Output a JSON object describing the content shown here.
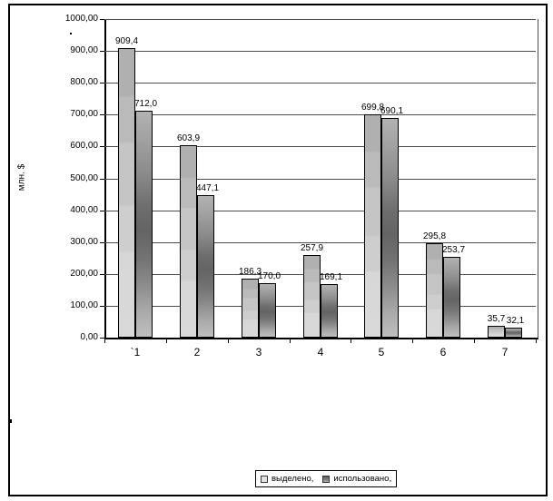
{
  "window": {
    "background": "#ffffff",
    "border_color": "#000000"
  },
  "chart_data": {
    "type": "bar",
    "title": "",
    "xlabel": "",
    "ylabel": "млн. $",
    "categories": [
      "`1",
      "2",
      "3",
      "4",
      "5",
      "6",
      "7"
    ],
    "series": [
      {
        "name": "выделено,",
        "color": "#c8c8c8",
        "values": [
          909.4,
          603.9,
          186.3,
          257.9,
          699.8,
          295.8,
          35.7
        ],
        "labels": [
          "909,4",
          "603,9",
          "186,3",
          "257,9",
          "699,8",
          "295,8",
          "35,7"
        ]
      },
      {
        "name": "использовано,",
        "color": "#787878",
        "values": [
          712.0,
          447.1,
          170.0,
          169.1,
          690.1,
          253.7,
          32.1
        ],
        "labels": [
          "712,0",
          "447,1",
          "170,0",
          "169,1",
          "690,1",
          "253,7",
          "32,1"
        ]
      }
    ],
    "ylim": [
      0,
      1000
    ],
    "ytick_step": 100,
    "ytick_labels": [
      "0,00",
      "100,00",
      "200,00",
      "300,00",
      "400,00",
      "500,00",
      "600,00",
      "700,00",
      "800,00",
      "900,00",
      "1000,00"
    ],
    "grid": true,
    "gridline_color": "#4d4d4d",
    "legend_position": "bottom",
    "legend_entries": [
      "выделено,",
      "использовано,"
    ]
  }
}
